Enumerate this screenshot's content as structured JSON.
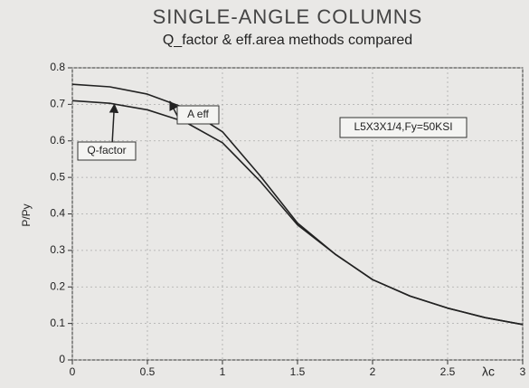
{
  "chart_data": {
    "type": "line",
    "title": "SINGLE-ANGLE COLUMNS",
    "subtitle": "Q_factor & eff.area methods compared",
    "y_label": "P/Py",
    "x_label": "λc",
    "x": [
      0,
      0.25,
      0.5,
      0.75,
      1,
      1.25,
      1.5,
      1.75,
      2,
      2.25,
      2.5,
      2.75,
      3
    ],
    "series": [
      {
        "name": "A eff",
        "color": "#222222",
        "values": [
          0.755,
          0.748,
          0.728,
          0.69,
          0.625,
          0.505,
          0.375,
          0.29,
          0.22,
          0.175,
          0.142,
          0.116,
          0.097
        ]
      },
      {
        "name": "Q-factor",
        "color": "#222222",
        "values": [
          0.71,
          0.703,
          0.685,
          0.652,
          0.595,
          0.49,
          0.37,
          0.29,
          0.22,
          0.175,
          0.142,
          0.116,
          0.097
        ]
      }
    ],
    "annotation": "L5X3X1/4,Fy=50KSI",
    "xlim": [
      0,
      3
    ],
    "xticks": [
      0,
      0.5,
      1,
      1.5,
      2,
      2.5,
      3
    ],
    "ylim": [
      0,
      0.8
    ],
    "yticks": [
      0,
      0.1,
      0.2,
      0.3,
      0.4,
      0.5,
      0.6,
      0.7,
      0.8
    ],
    "grid": true
  }
}
